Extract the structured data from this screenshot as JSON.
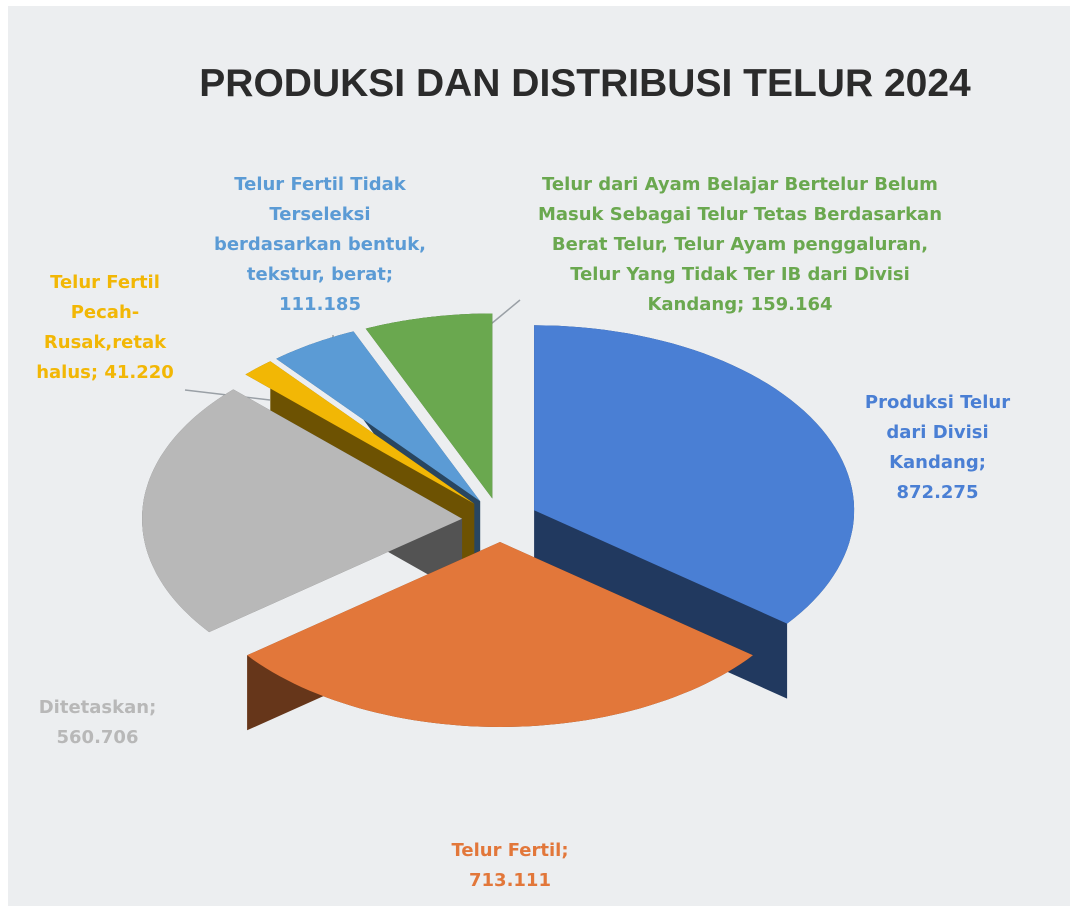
{
  "chart_data": {
    "type": "pie3d",
    "title": "PRODUKSI DAN DISTRIBUSI TELUR 2024",
    "label_separator": ";",
    "categories": [
      "Produksi Telur dari Divisi Kandang",
      "Telur Fertil",
      "Ditetaskan",
      "Telur Fertil Pecah-Rusak,retak halus",
      "Telur Fertil Tidak Terseleksi berdasarkan bentuk, tekstur, berat",
      "Telur dari Ayam Belajar Bertelur Belum Masuk Sebagai Telur Tetas Berdasarkan Berat Telur, Telur Ayam penggaluran, Telur Yang Tidak Ter IB dari Divisi Kandang"
    ],
    "values": [
      872275,
      713111,
      560706,
      41220,
      111185,
      159164
    ],
    "value_labels": [
      "872.275",
      "713.111",
      "560.706",
      "41.220",
      "111.185",
      "159.164"
    ],
    "colors": [
      "#4a7fd4",
      "#e2773a",
      "#b8b8b8",
      "#f2b705",
      "#5b9bd5",
      "#6aa84f"
    ]
  }
}
